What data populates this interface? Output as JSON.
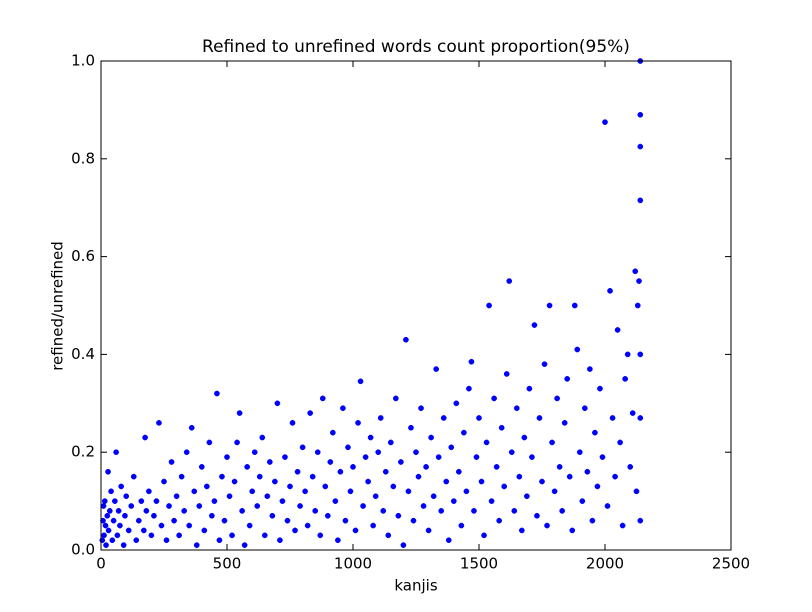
{
  "chart_data": {
    "type": "scatter",
    "title": "Refined to unrefined words count proportion(95%)",
    "x_label": "kanjis",
    "y_label": "refined/unrefined",
    "xlim": [
      0,
      2500
    ],
    "ylim": [
      0,
      1
    ],
    "xticks": [
      0,
      500,
      1000,
      1500,
      2000,
      2500
    ],
    "yticks": [
      {
        "value": 0,
        "label": "0.0"
      },
      0.2,
      0.4,
      0.6,
      0.8,
      {
        "value": 1,
        "label": "1.0"
      }
    ],
    "grid": false,
    "series": [
      {
        "color": "#0000ff",
        "x": [
          5,
          8,
          10,
          12,
          15,
          18,
          20,
          25,
          28,
          30,
          35,
          40,
          45,
          50,
          55,
          60,
          65,
          70,
          75,
          80,
          90,
          95,
          100,
          110,
          120,
          130,
          140,
          150,
          160,
          170,
          175,
          180,
          190,
          200,
          210,
          220,
          230,
          240,
          250,
          260,
          270,
          280,
          290,
          300,
          310,
          320,
          330,
          340,
          350,
          360,
          370,
          380,
          390,
          400,
          410,
          420,
          430,
          440,
          450,
          460,
          470,
          480,
          490,
          500,
          510,
          520,
          530,
          540,
          550,
          560,
          570,
          580,
          590,
          600,
          610,
          620,
          630,
          640,
          650,
          660,
          670,
          680,
          690,
          700,
          710,
          720,
          730,
          740,
          750,
          760,
          770,
          780,
          790,
          800,
          810,
          820,
          830,
          840,
          850,
          860,
          870,
          880,
          890,
          900,
          910,
          920,
          930,
          940,
          950,
          960,
          970,
          980,
          990,
          1000,
          1010,
          1020,
          1030,
          1040,
          1050,
          1060,
          1070,
          1080,
          1090,
          1100,
          1110,
          1120,
          1130,
          1140,
          1150,
          1160,
          1170,
          1180,
          1190,
          1200,
          1210,
          1220,
          1230,
          1240,
          1250,
          1260,
          1270,
          1280,
          1290,
          1300,
          1310,
          1320,
          1330,
          1340,
          1350,
          1360,
          1370,
          1380,
          1390,
          1400,
          1410,
          1420,
          1430,
          1440,
          1450,
          1460,
          1470,
          1480,
          1490,
          1500,
          1510,
          1520,
          1530,
          1540,
          1550,
          1560,
          1570,
          1580,
          1590,
          1600,
          1610,
          1620,
          1630,
          1640,
          1650,
          1660,
          1670,
          1680,
          1690,
          1700,
          1710,
          1720,
          1730,
          1740,
          1750,
          1760,
          1770,
          1780,
          1790,
          1800,
          1810,
          1820,
          1830,
          1840,
          1850,
          1860,
          1870,
          1880,
          1890,
          1900,
          1910,
          1920,
          1930,
          1940,
          1950,
          1960,
          1970,
          1980,
          1990,
          2000,
          2010,
          2020,
          2030,
          2040,
          2050,
          2060,
          2070,
          2080,
          2090,
          2100,
          2110,
          2120,
          2125,
          2130,
          2135,
          2140,
          2140,
          2140,
          2140,
          2140,
          2140,
          2140
        ],
        "values": [
          0.02,
          0.06,
          0.09,
          0.03,
          0.1,
          0.05,
          0.01,
          0.07,
          0.16,
          0.04,
          0.08,
          0.12,
          0.02,
          0.06,
          0.1,
          0.2,
          0.03,
          0.08,
          0.05,
          0.13,
          0.01,
          0.07,
          0.11,
          0.04,
          0.09,
          0.15,
          0.02,
          0.06,
          0.1,
          0.04,
          0.23,
          0.08,
          0.12,
          0.03,
          0.07,
          0.1,
          0.26,
          0.05,
          0.14,
          0.02,
          0.09,
          0.18,
          0.06,
          0.11,
          0.03,
          0.15,
          0.08,
          0.2,
          0.05,
          0.25,
          0.12,
          0.01,
          0.09,
          0.17,
          0.04,
          0.13,
          0.22,
          0.07,
          0.1,
          0.32,
          0.02,
          0.15,
          0.06,
          0.19,
          0.11,
          0.03,
          0.14,
          0.22,
          0.28,
          0.08,
          0.01,
          0.17,
          0.05,
          0.12,
          0.2,
          0.09,
          0.15,
          0.23,
          0.03,
          0.11,
          0.18,
          0.07,
          0.14,
          0.3,
          0.02,
          0.1,
          0.19,
          0.06,
          0.13,
          0.26,
          0.04,
          0.16,
          0.09,
          0.21,
          0.12,
          0.05,
          0.28,
          0.15,
          0.08,
          0.2,
          0.03,
          0.31,
          0.13,
          0.07,
          0.18,
          0.24,
          0.1,
          0.02,
          0.16,
          0.29,
          0.06,
          0.21,
          0.12,
          0.17,
          0.04,
          0.26,
          0.345,
          0.09,
          0.19,
          0.14,
          0.23,
          0.05,
          0.11,
          0.2,
          0.27,
          0.08,
          0.16,
          0.03,
          0.22,
          0.13,
          0.31,
          0.07,
          0.18,
          0.01,
          0.43,
          0.12,
          0.25,
          0.06,
          0.2,
          0.15,
          0.29,
          0.09,
          0.17,
          0.04,
          0.23,
          0.11,
          0.37,
          0.19,
          0.08,
          0.27,
          0.14,
          0.02,
          0.21,
          0.1,
          0.3,
          0.16,
          0.05,
          0.24,
          0.12,
          0.33,
          0.385,
          0.08,
          0.19,
          0.27,
          0.14,
          0.03,
          0.22,
          0.5,
          0.1,
          0.31,
          0.17,
          0.06,
          0.25,
          0.13,
          0.36,
          0.55,
          0.2,
          0.08,
          0.29,
          0.15,
          0.04,
          0.23,
          0.11,
          0.33,
          0.19,
          0.46,
          0.07,
          0.27,
          0.14,
          0.38,
          0.05,
          0.5,
          0.22,
          0.12,
          0.31,
          0.17,
          0.08,
          0.26,
          0.35,
          0.15,
          0.04,
          0.5,
          0.41,
          0.2,
          0.1,
          0.29,
          0.16,
          0.37,
          0.06,
          0.24,
          0.13,
          0.33,
          0.19,
          0.875,
          0.09,
          0.53,
          0.27,
          0.15,
          0.45,
          0.22,
          0.05,
          0.35,
          0.4,
          0.17,
          0.28,
          0.57,
          0.12,
          0.5,
          0.55,
          1.0,
          0.89,
          0.825,
          0.715,
          0.4,
          0.27,
          0.06
        ]
      }
    ]
  }
}
